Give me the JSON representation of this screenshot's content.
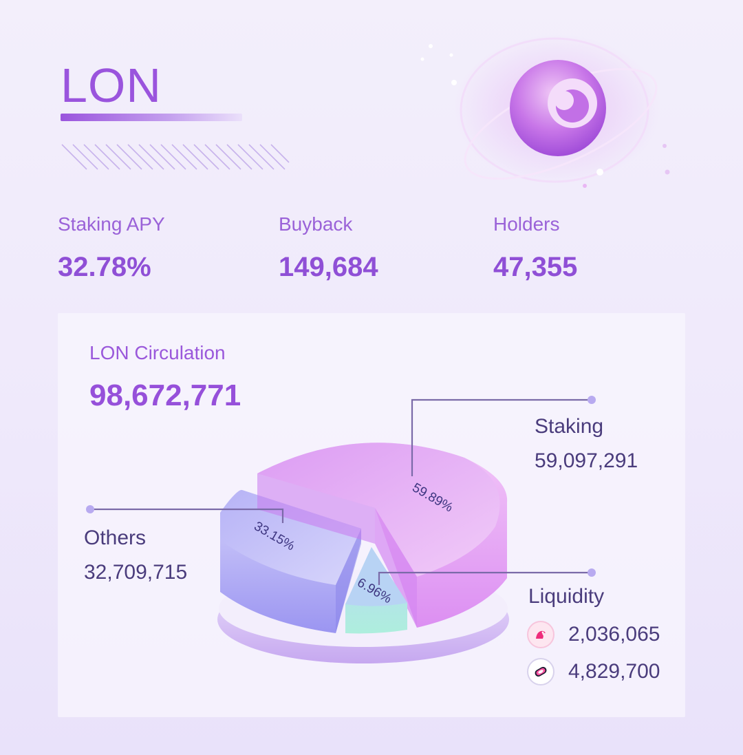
{
  "header": {
    "title": "LON"
  },
  "stats": [
    {
      "label": "Staking APY",
      "value": "32.78%"
    },
    {
      "label": "Buyback",
      "value": "149,684"
    },
    {
      "label": "Holders",
      "value": "47,355"
    }
  ],
  "circulation": {
    "label": "LON Circulation",
    "value": "98,672,771"
  },
  "colors": {
    "accent": "#9a54dd",
    "staking": "#e7b2f5",
    "others": "#aaa5f3",
    "liquidity": "#b3ece0",
    "legend_text": "#4a3c7c"
  },
  "icons": {
    "brand_logo": "lon-logo-icon",
    "liquidity_sources": [
      "uniswap-icon",
      "sushiswap-icon"
    ]
  },
  "chart_data": {
    "type": "pie",
    "style": "3d-exploded",
    "slices": [
      {
        "name": "Staking",
        "value": 59097291,
        "percent_label": "59.89%"
      },
      {
        "name": "Others",
        "value": 32709715,
        "percent_label": "33.15%"
      },
      {
        "name": "Liquidity",
        "value": 6865765,
        "percent_label": "6.96%"
      }
    ]
  },
  "legend": {
    "staking": {
      "name": "Staking",
      "value": "59,097,291"
    },
    "others": {
      "name": "Others",
      "value": "32,709,715"
    },
    "liquidity": {
      "name": "Liquidity",
      "sources": [
        {
          "icon": "uniswap-icon",
          "value": "2,036,065"
        },
        {
          "icon": "sushiswap-icon",
          "value": "4,829,700"
        }
      ]
    }
  }
}
